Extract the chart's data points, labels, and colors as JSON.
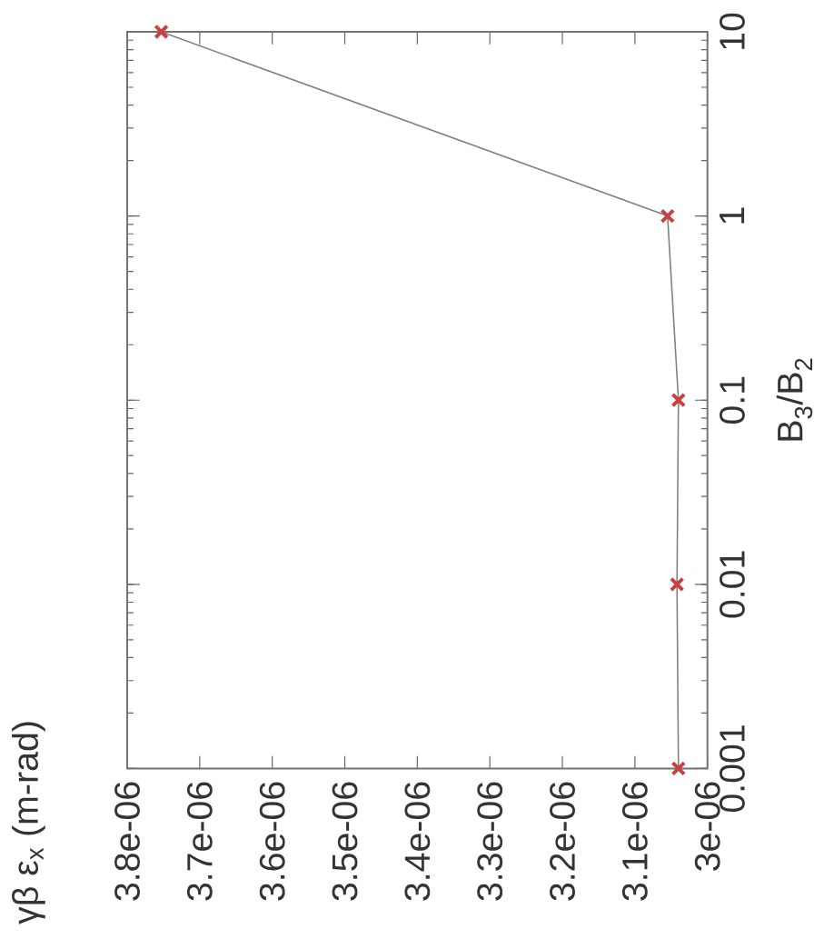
{
  "chart_data": {
    "type": "line",
    "annotations": [
      "γβ ε$_{x}$ (m-rad)"
    ],
    "ylabel": "B$_{3}$/B$_{2}$",
    "x": [
      3.04e-06,
      3.042e-06,
      3.04e-06,
      3.055e-06,
      3.753e-06
    ],
    "series": [
      {
        "color": "#c8413f",
        "values": [
          0.001,
          0.01,
          0.1,
          1,
          10
        ]
      }
    ],
    "log": "y",
    "xlim": [
      3.8e-06,
      3e-06
    ],
    "ylim": [
      0.001,
      10
    ],
    "yticks": [
      {
        "value": 0.001,
        "label": "0.001"
      },
      {
        "value": 0.01,
        "label": "0.01"
      },
      {
        "value": 0.1,
        "label": "0.1"
      },
      {
        "value": 1,
        "label": "1"
      },
      {
        "value": 10,
        "label": "10"
      }
    ],
    "xticks": [
      {
        "value": 3.8e-06,
        "label": "3.8e-06"
      },
      {
        "value": 3.7e-06,
        "label": "3.7e-06"
      },
      {
        "value": 3.6e-06,
        "label": "3.6e-06"
      },
      {
        "value": 3.5e-06,
        "label": "3.5e-06"
      },
      {
        "value": 3.4e-06,
        "label": "3.4e-06"
      },
      {
        "value": 3.3e-06,
        "label": "3.3e-06"
      },
      {
        "value": 3.2e-06,
        "label": "3.2e-06"
      },
      {
        "value": 3.1e-06,
        "label": "3.1e-06"
      },
      {
        "value": 3e-06,
        "label": "3e-06"
      }
    ],
    "marker": "cross",
    "grid": false
  }
}
